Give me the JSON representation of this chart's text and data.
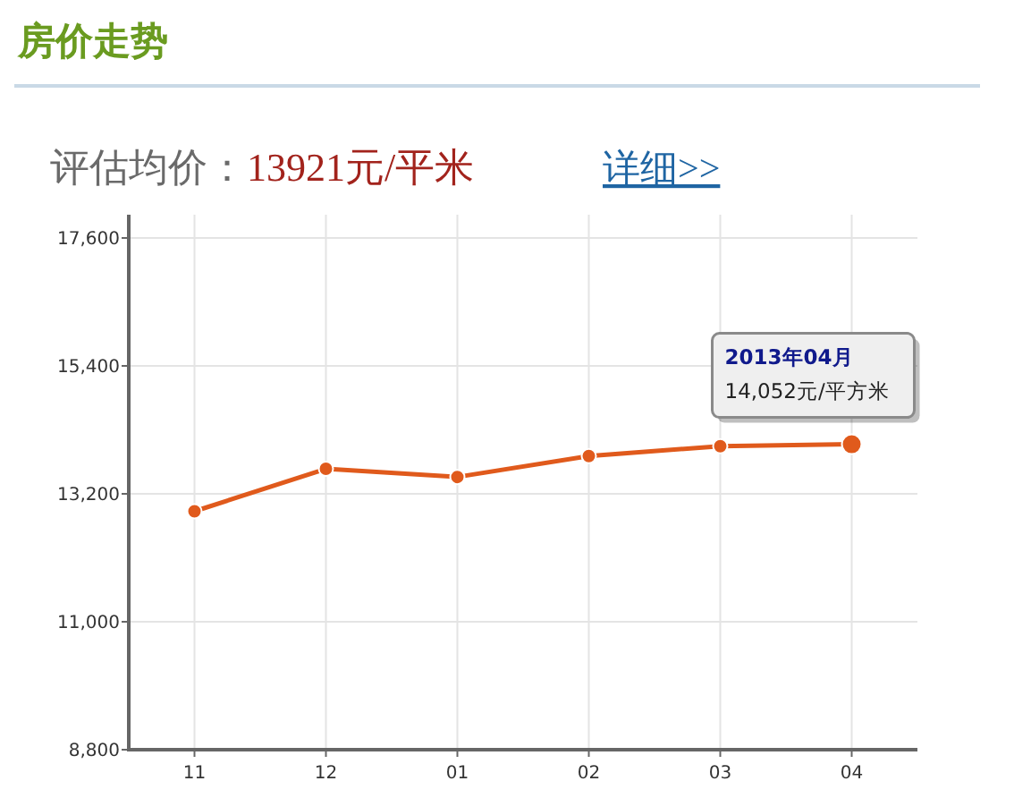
{
  "chart_data": {
    "type": "line",
    "title": "房价走势",
    "subtitle": "评估均价：13921元/平米",
    "categories": [
      "11",
      "12",
      "01",
      "02",
      "03",
      "04"
    ],
    "series": [
      {
        "color": "#e05a1c",
        "values": [
          12900,
          13630,
          13490,
          13850,
          14020,
          14052
        ],
        "value_labels": [
          null,
          null,
          null,
          null,
          null,
          "14,052元/平方米"
        ]
      }
    ],
    "ylim": [
      8800,
      18000
    ],
    "yticks": [
      {
        "value": 8800,
        "label": "8,800"
      },
      {
        "value": 11000,
        "label": "11,000"
      },
      {
        "value": 13200,
        "label": "13,200"
      },
      {
        "value": 15400,
        "label": "15,400"
      },
      {
        "value": 17600,
        "label": "17,600"
      }
    ],
    "grid": true,
    "marker": "circle",
    "annotations": [
      "详细>>",
      "2013年04月"
    ]
  }
}
